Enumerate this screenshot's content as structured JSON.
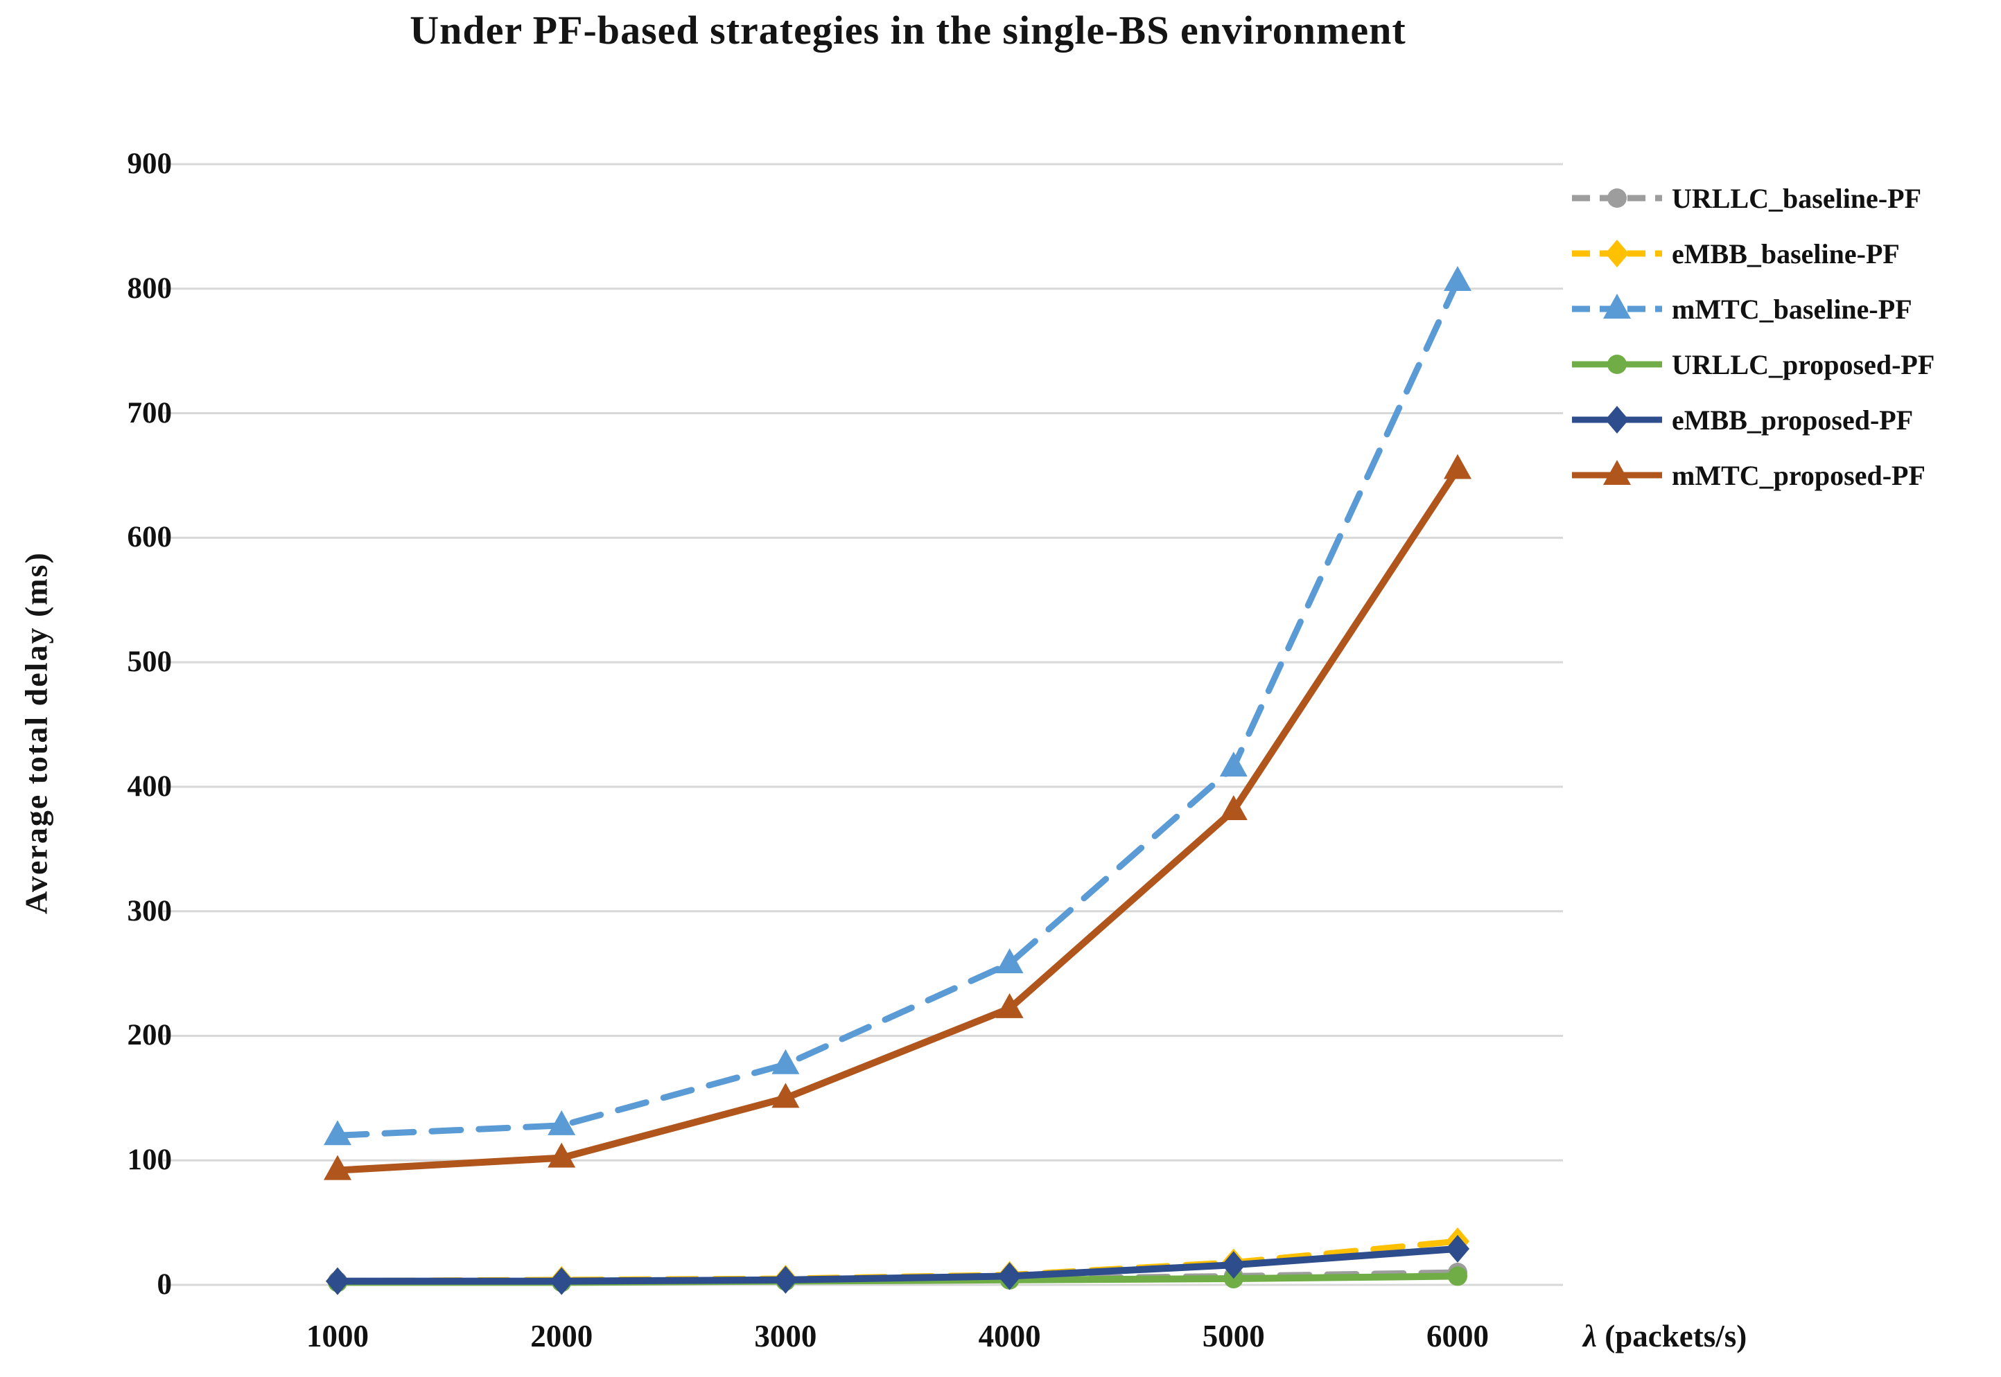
{
  "chart_data": {
    "type": "line",
    "title": "Under PF-based strategies in the single-BS environment",
    "ylabel": "Average total delay (ms)",
    "xlabel": "λ (packets/s)",
    "x": [
      1000,
      2000,
      3000,
      4000,
      5000,
      6000
    ],
    "x_tick_labels": [
      "1000",
      "2000",
      "3000",
      "4000",
      "5000",
      "6000"
    ],
    "y_tick_labels": [
      "0",
      "100",
      "200",
      "300",
      "400",
      "500",
      "600",
      "700",
      "800",
      "900"
    ],
    "ylim": [
      0,
      900
    ],
    "ytick_step": 100,
    "grid": true,
    "legend_position": "right",
    "background_color": "#ffffff",
    "gridline_color": "#d8d8d8",
    "text_color": "#111111",
    "series": [
      {
        "name": "URLLC_baseline-PF",
        "color": "#9d9d9d",
        "style": "dashed",
        "marker": "circle",
        "values": [
          3,
          3,
          4,
          5,
          7,
          10
        ]
      },
      {
        "name": "eMBB_baseline-PF",
        "color": "#ffc000",
        "style": "dashed",
        "marker": "diamond",
        "values": [
          3,
          4,
          5,
          8,
          18,
          35
        ]
      },
      {
        "name": "mMTC_baseline-PF",
        "color": "#5b9bd5",
        "style": "dashed",
        "marker": "triangle",
        "values": [
          120,
          128,
          177,
          258,
          416,
          806
        ]
      },
      {
        "name": "URLLC_proposed-PF",
        "color": "#70ad47",
        "style": "solid",
        "marker": "circle",
        "values": [
          2,
          2,
          3,
          4,
          5,
          7
        ]
      },
      {
        "name": "eMBB_proposed-PF",
        "color": "#2e4d8c",
        "style": "solid",
        "marker": "diamond",
        "values": [
          3,
          3,
          4,
          7,
          16,
          29
        ]
      },
      {
        "name": "mMTC_proposed-PF",
        "color": "#b0551b",
        "style": "solid",
        "marker": "triangle",
        "values": [
          92,
          102,
          150,
          222,
          381,
          655
        ]
      }
    ]
  }
}
